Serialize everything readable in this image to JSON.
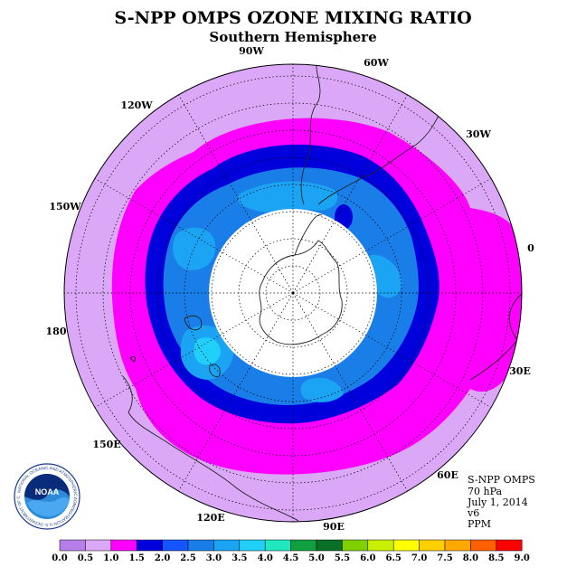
{
  "title": "S-NPP OMPS OZONE MIXING RATIO",
  "subtitle": "Southern Hemisphere",
  "longitude_labels": [
    "90W",
    "60W",
    "30W",
    "0",
    "30E",
    "60E",
    "90E",
    "120E",
    "150E",
    "180",
    "150W",
    "120W"
  ],
  "info": {
    "instrument": "S-NPP OMPS",
    "level": "70 hPa",
    "date": "July 1, 2014",
    "version": "v6",
    "units": "PPM"
  },
  "logo": {
    "text": "NOAA",
    "ring_text": "NATIONAL OCEANIC AND ATMOSPHERIC ADMINISTRATION  U.S. DEPARTMENT OF COMMERCE"
  },
  "colorbar": {
    "ticks": [
      "0.0",
      "0.5",
      "1.0",
      "1.5",
      "2.0",
      "2.5",
      "3.0",
      "3.5",
      "4.0",
      "4.5",
      "5.0",
      "5.5",
      "6.0",
      "6.5",
      "7.0",
      "7.5",
      "8.0",
      "8.5",
      "9.0"
    ],
    "colors": [
      "#b67ee8",
      "#dba8f8",
      "#ff00ff",
      "#0000dd",
      "#1555ff",
      "#1a7ee8",
      "#1ca4f4",
      "#20d0f8",
      "#20e8c0",
      "#10a040",
      "#0a7028",
      "#80d000",
      "#c8f000",
      "#ffff00",
      "#ffd000",
      "#ffa800",
      "#ff6000",
      "#ff0000",
      "#8a5a3a"
    ]
  },
  "colors": {
    "band_outer": "#dba8f8",
    "band_magenta": "#ff00ff",
    "band_blue": "#0000dd",
    "band_mid": "#1a7ee8",
    "band_inner": "#1ca4f4",
    "band_cyan": "#20d0f8",
    "no_data": "#ffffff"
  }
}
